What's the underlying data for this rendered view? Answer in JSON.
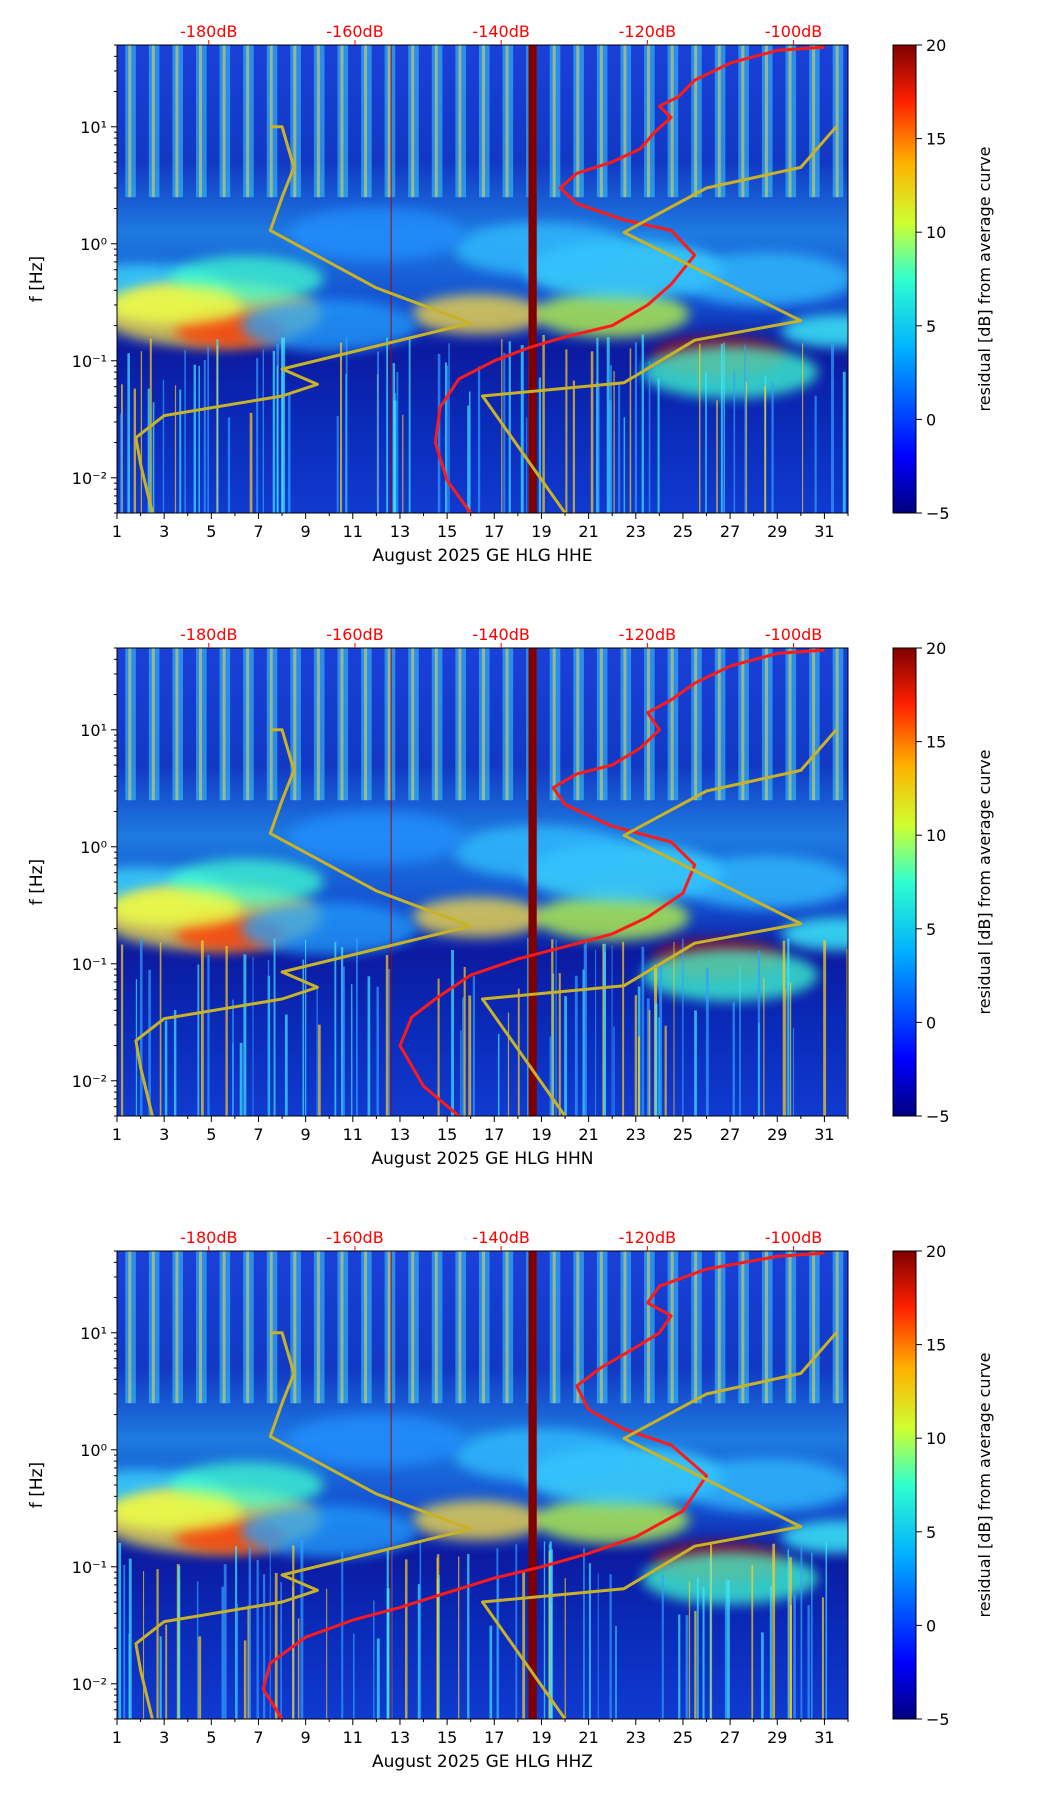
{
  "chart_data": [
    {
      "type": "heatmap",
      "xlabel": "August 2025 GE HLG  HHE",
      "ylabel": "f [Hz]",
      "x_ticks": [
        "1",
        "3",
        "5",
        "7",
        "9",
        "11",
        "13",
        "15",
        "17",
        "19",
        "21",
        "23",
        "25",
        "27",
        "29",
        "31"
      ],
      "y_ticks": [
        "10⁻²",
        "10⁻¹",
        "10⁰",
        "10¹"
      ],
      "top_ticks": [
        "-180dB",
        "-160dB",
        "-140dB",
        "-120dB",
        "-100dB"
      ],
      "colorbar": {
        "label": "residual [dB] from average curve",
        "ticks": [
          "−5",
          "0",
          "5",
          "10",
          "15",
          "20"
        ],
        "range": [
          -5,
          20
        ]
      },
      "xlim": [
        1,
        32
      ],
      "ylim_hz": [
        0.005,
        50
      ],
      "scale_y": "log",
      "series": [
        {
          "color": "#ff1a1a",
          "points": [
            [
              16.0,
              0.005
            ],
            [
              15.0,
              0.0095
            ],
            [
              14.5,
              0.02
            ],
            [
              14.7,
              0.04
            ],
            [
              15.5,
              0.07
            ],
            [
              17,
              0.1
            ],
            [
              18.5,
              0.13
            ],
            [
              20,
              0.16
            ],
            [
              22,
              0.2
            ],
            [
              23.5,
              0.3
            ],
            [
              24.5,
              0.45
            ],
            [
              25.5,
              0.8
            ],
            [
              24.5,
              1.3
            ],
            [
              22.5,
              1.6
            ],
            [
              20.5,
              2.2
            ],
            [
              19.8,
              3
            ],
            [
              20.5,
              4
            ],
            [
              22.0,
              5
            ],
            [
              23.2,
              6.5
            ],
            [
              23.8,
              9
            ],
            [
              24.5,
              12
            ],
            [
              24.0,
              15
            ],
            [
              24.8,
              18
            ],
            [
              25.5,
              25
            ],
            [
              27,
              35
            ],
            [
              29,
              45
            ],
            [
              31,
              48
            ]
          ]
        },
        {
          "color": "#c8b228",
          "points": [
            [
              2.5,
              0.005
            ],
            [
              2.0,
              0.013
            ],
            [
              1.8,
              0.022
            ],
            [
              3.0,
              0.034
            ],
            [
              8.0,
              0.05
            ],
            [
              9.5,
              0.063
            ],
            [
              8.0,
              0.085
            ],
            [
              16.0,
              0.21
            ],
            [
              12.0,
              0.42
            ],
            [
              7.5,
              1.3
            ],
            [
              8.0,
              2.5
            ],
            [
              8.5,
              4.5
            ],
            [
              8.0,
              10
            ],
            [
              7.5,
              10
            ],
            [
              null,
              null
            ],
            [
              20,
              0.005
            ],
            [
              16.5,
              0.05
            ],
            [
              22.5,
              0.065
            ],
            [
              25.5,
              0.15
            ],
            [
              30,
              0.22
            ],
            [
              22.5,
              1.25
            ],
            [
              26,
              3
            ],
            [
              30,
              4.5
            ],
            [
              31.5,
              10
            ]
          ]
        }
      ]
    },
    {
      "type": "heatmap",
      "xlabel": "August 2025 GE HLG  HHN",
      "ylabel": "f [Hz]",
      "x_ticks": [
        "1",
        "3",
        "5",
        "7",
        "9",
        "11",
        "13",
        "15",
        "17",
        "19",
        "21",
        "23",
        "25",
        "27",
        "29",
        "31"
      ],
      "y_ticks": [
        "10⁻²",
        "10⁻¹",
        "10⁰",
        "10¹"
      ],
      "top_ticks": [
        "-180dB",
        "-160dB",
        "-140dB",
        "-120dB",
        "-100dB"
      ],
      "colorbar": {
        "label": "residual [dB] from average curve",
        "ticks": [
          "−5",
          "0",
          "5",
          "10",
          "15",
          "20"
        ],
        "range": [
          -5,
          20
        ]
      },
      "xlim": [
        1,
        32
      ],
      "ylim_hz": [
        0.005,
        50
      ],
      "scale_y": "log",
      "series": [
        {
          "color": "#ff1a1a",
          "points": [
            [
              15.5,
              0.005
            ],
            [
              14.0,
              0.009
            ],
            [
              13.0,
              0.02
            ],
            [
              13.5,
              0.035
            ],
            [
              14.5,
              0.05
            ],
            [
              16,
              0.08
            ],
            [
              18,
              0.11
            ],
            [
              20,
              0.14
            ],
            [
              22,
              0.18
            ],
            [
              23.5,
              0.25
            ],
            [
              25,
              0.4
            ],
            [
              25.5,
              0.7
            ],
            [
              24.5,
              1.1
            ],
            [
              22,
              1.5
            ],
            [
              20,
              2.3
            ],
            [
              19.5,
              3.2
            ],
            [
              20.5,
              4.2
            ],
            [
              22.0,
              5
            ],
            [
              23.2,
              7
            ],
            [
              24,
              10
            ],
            [
              23.5,
              14
            ],
            [
              24.5,
              18
            ],
            [
              25.5,
              25
            ],
            [
              27,
              35
            ],
            [
              29,
              45
            ],
            [
              31,
              48
            ]
          ]
        },
        {
          "color": "#c8b228",
          "points": [
            [
              2.5,
              0.005
            ],
            [
              2.0,
              0.013
            ],
            [
              1.8,
              0.022
            ],
            [
              3.0,
              0.034
            ],
            [
              8.0,
              0.05
            ],
            [
              9.5,
              0.063
            ],
            [
              8.0,
              0.085
            ],
            [
              16.0,
              0.21
            ],
            [
              12.0,
              0.42
            ],
            [
              7.5,
              1.3
            ],
            [
              8.0,
              2.5
            ],
            [
              8.5,
              4.5
            ],
            [
              8.0,
              10
            ],
            [
              7.5,
              10
            ],
            [
              null,
              null
            ],
            [
              20,
              0.005
            ],
            [
              16.5,
              0.05
            ],
            [
              22.5,
              0.065
            ],
            [
              25.5,
              0.15
            ],
            [
              30,
              0.22
            ],
            [
              22.5,
              1.25
            ],
            [
              26,
              3
            ],
            [
              30,
              4.5
            ],
            [
              31.5,
              10
            ]
          ]
        }
      ]
    },
    {
      "type": "heatmap",
      "xlabel": "August 2025 GE HLG  HHZ",
      "ylabel": "f [Hz]",
      "x_ticks": [
        "1",
        "3",
        "5",
        "7",
        "9",
        "11",
        "13",
        "15",
        "17",
        "19",
        "21",
        "23",
        "25",
        "27",
        "29",
        "31"
      ],
      "y_ticks": [
        "10⁻²",
        "10⁻¹",
        "10⁰",
        "10¹"
      ],
      "top_ticks": [
        "-180dB",
        "-160dB",
        "-140dB",
        "-120dB",
        "-100dB"
      ],
      "colorbar": {
        "label": "residual [dB] from average curve",
        "ticks": [
          "−5",
          "0",
          "5",
          "10",
          "15",
          "20"
        ],
        "range": [
          -5,
          20
        ]
      },
      "xlim": [
        1,
        32
      ],
      "ylim_hz": [
        0.005,
        50
      ],
      "scale_y": "log",
      "series": [
        {
          "color": "#ff1a1a",
          "points": [
            [
              8.0,
              0.005
            ],
            [
              7.2,
              0.009
            ],
            [
              7.5,
              0.015
            ],
            [
              9,
              0.025
            ],
            [
              11,
              0.035
            ],
            [
              13,
              0.045
            ],
            [
              15,
              0.06
            ],
            [
              17,
              0.08
            ],
            [
              19,
              0.1
            ],
            [
              21,
              0.13
            ],
            [
              23,
              0.18
            ],
            [
              25,
              0.3
            ],
            [
              26,
              0.6
            ],
            [
              24.5,
              1.1
            ],
            [
              22.5,
              1.5
            ],
            [
              21,
              2.2
            ],
            [
              20.5,
              3.5
            ],
            [
              21.5,
              5
            ],
            [
              23,
              7.5
            ],
            [
              24,
              10
            ],
            [
              24.5,
              14
            ],
            [
              23.5,
              18
            ],
            [
              24,
              25
            ],
            [
              26,
              35
            ],
            [
              29,
              45
            ],
            [
              31,
              48
            ]
          ]
        },
        {
          "color": "#c8b228",
          "points": [
            [
              2.5,
              0.005
            ],
            [
              2.0,
              0.013
            ],
            [
              1.8,
              0.022
            ],
            [
              3.0,
              0.034
            ],
            [
              8.0,
              0.05
            ],
            [
              9.5,
              0.063
            ],
            [
              8.0,
              0.085
            ],
            [
              16.0,
              0.21
            ],
            [
              12.0,
              0.42
            ],
            [
              7.5,
              1.3
            ],
            [
              8.0,
              2.5
            ],
            [
              8.5,
              4.5
            ],
            [
              8.0,
              10
            ],
            [
              7.5,
              10
            ],
            [
              null,
              null
            ],
            [
              20,
              0.005
            ],
            [
              16.5,
              0.05
            ],
            [
              22.5,
              0.065
            ],
            [
              25.5,
              0.15
            ],
            [
              30,
              0.22
            ],
            [
              22.5,
              1.25
            ],
            [
              26,
              3
            ],
            [
              30,
              4.5
            ],
            [
              31.5,
              10
            ]
          ]
        }
      ]
    }
  ]
}
